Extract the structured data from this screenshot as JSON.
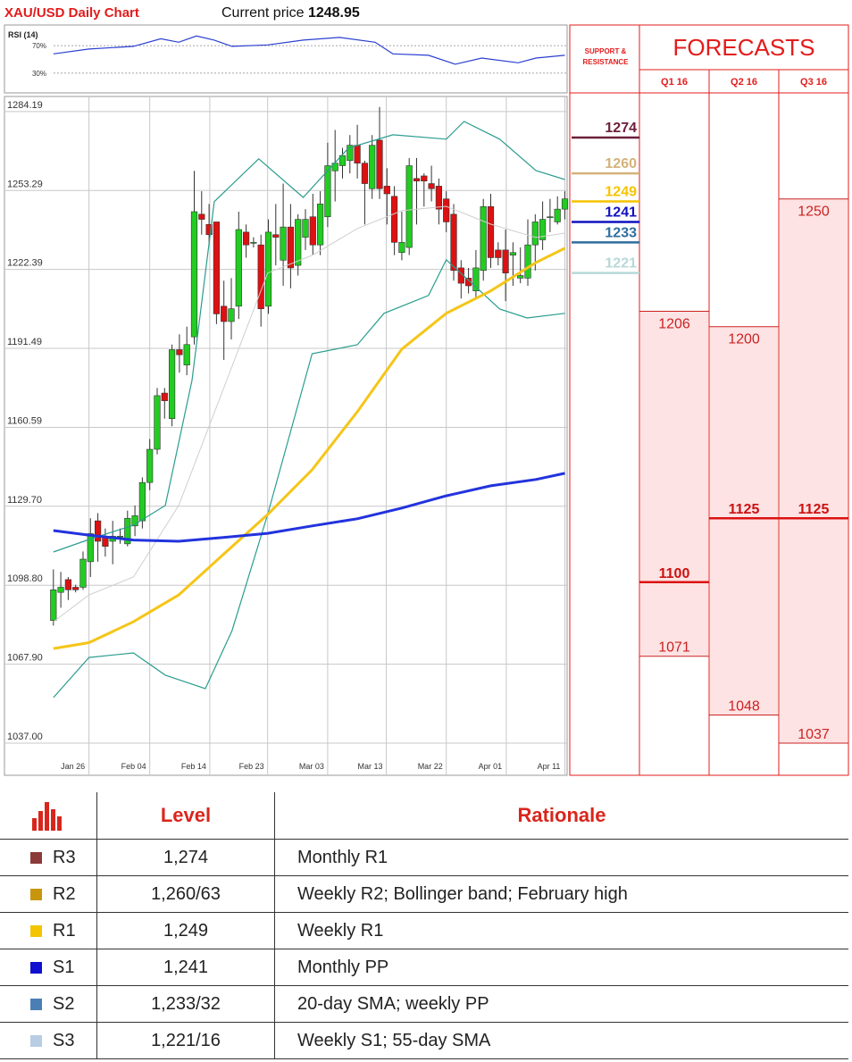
{
  "chart_data": [
    {
      "type": "candlestick",
      "title": "XAU/USD Daily Chart",
      "current_price_label": "Current price",
      "current_price": 1248.95,
      "up_color": "#22cc22",
      "down_color": "#dd1111",
      "x": [
        0,
        1,
        2,
        3,
        4,
        5,
        6,
        7,
        8,
        9,
        10,
        11,
        12,
        13,
        14,
        15,
        16,
        17,
        18,
        19,
        20,
        21,
        22,
        23,
        24,
        25,
        26,
        27,
        28,
        29,
        30,
        31,
        32,
        33,
        34,
        35,
        36,
        37,
        38,
        39,
        40,
        41,
        42,
        43,
        44,
        45,
        46,
        47,
        48,
        49,
        50,
        51,
        52,
        53,
        54,
        55,
        56,
        57,
        58,
        59,
        60,
        61,
        62,
        63,
        64,
        65,
        66,
        67,
        68,
        69
      ],
      "open": [
        1085,
        1096,
        1101,
        1098,
        1098,
        1108,
        1124,
        1118,
        1116,
        1118,
        1115,
        1122,
        1124,
        1139,
        1152,
        1174,
        1164,
        1191,
        1185,
        1196,
        1244,
        1240,
        1241,
        1208,
        1202,
        1208,
        1237,
        1233,
        1232,
        1208,
        1236,
        1226,
        1239,
        1224,
        1235,
        1243,
        1232,
        1243,
        1261,
        1263,
        1265,
        1271,
        1264,
        1254,
        1273,
        1255,
        1251,
        1229,
        1231,
        1258,
        1259,
        1256,
        1255,
        1250,
        1244,
        1223,
        1219,
        1214,
        1222,
        1247,
        1230,
        1230,
        1228,
        1219,
        1219,
        1232,
        1234,
        1243,
        1241,
        1246
      ],
      "high": [
        1105,
        1104,
        1102,
        1099,
        1112,
        1125,
        1127,
        1121,
        1124,
        1121,
        1128,
        1130,
        1141,
        1156,
        1176,
        1176,
        1193,
        1197,
        1200,
        1261,
        1253,
        1248,
        1241,
        1218,
        1219,
        1245,
        1240,
        1235,
        1236,
        1242,
        1248,
        1256,
        1248,
        1244,
        1246,
        1252,
        1253,
        1272,
        1277,
        1270,
        1275,
        1279,
        1265,
        1275,
        1286,
        1262,
        1255,
        1245,
        1266,
        1266,
        1260,
        1263,
        1258,
        1253,
        1248,
        1226,
        1223,
        1230,
        1250,
        1252,
        1233,
        1238,
        1233,
        1231,
        1242,
        1244,
        1249,
        1250,
        1251,
        1253
      ],
      "low": [
        1083,
        1090,
        1093,
        1096,
        1097,
        1102,
        1108,
        1110,
        1107,
        1115,
        1114,
        1118,
        1121,
        1136,
        1150,
        1164,
        1161,
        1182,
        1181,
        1193,
        1236,
        1232,
        1201,
        1187,
        1195,
        1203,
        1227,
        1231,
        1200,
        1205,
        1224,
        1216,
        1215,
        1220,
        1230,
        1228,
        1228,
        1239,
        1249,
        1258,
        1260,
        1258,
        1240,
        1250,
        1250,
        1240,
        1228,
        1226,
        1228,
        1240,
        1247,
        1249,
        1240,
        1237,
        1218,
        1211,
        1213,
        1211,
        1218,
        1223,
        1224,
        1210,
        1216,
        1217,
        1216,
        1222,
        1230,
        1237,
        1240,
        1242
      ],
      "close": [
        1097,
        1098,
        1097,
        1097,
        1109,
        1119,
        1116,
        1114,
        1118,
        1118,
        1125,
        1126,
        1139,
        1152,
        1173,
        1171,
        1191,
        1189,
        1193,
        1245,
        1242,
        1236,
        1205,
        1202,
        1207,
        1238,
        1232,
        1233,
        1207,
        1237,
        1235,
        1239,
        1223,
        1242,
        1242,
        1232,
        1248,
        1263,
        1264,
        1267,
        1271,
        1264,
        1256,
        1271,
        1254,
        1252,
        1233,
        1233,
        1263,
        1257,
        1257,
        1254,
        1246,
        1241,
        1222,
        1217,
        1216,
        1223,
        1247,
        1227,
        1227,
        1221,
        1229,
        1220,
        1232,
        1241,
        1242,
        1243,
        1246,
        1250
      ],
      "overlays": [
        {
          "color": "#cfcfcf",
          "width": 1,
          "x": [
            0,
            4.8,
            10.8,
            16.9,
            22.9,
            28.9,
            34.9,
            41,
            47,
            53,
            59,
            65.1,
            69
          ],
          "values": [
            1084.5,
            1095,
            1102,
            1130,
            1175.4,
            1221,
            1227.9,
            1238.4,
            1245.4,
            1247.1,
            1240.1,
            1234.9,
            1236.6
          ]
        },
        {
          "color": "#2a9d8f",
          "width": 1.2,
          "x": [
            0,
            4.8,
            10.8,
            15.1,
            18.7,
            21.7,
            27.7,
            33.7,
            39.8,
            45.8,
            53,
            55.4,
            60.2,
            65.1,
            69
          ],
          "values": [
            1111.8,
            1116.7,
            1122.3,
            1130,
            1179,
            1248.9,
            1265.7,
            1250.6,
            1269.9,
            1275.1,
            1273.4,
            1280.3,
            1273.4,
            1261.1,
            1257.6
          ]
        },
        {
          "color": "#2a9d8f",
          "width": 1.2,
          "x": [
            0,
            4.8,
            10.8,
            15.1,
            20.5,
            24.1,
            28.9,
            34.9,
            41,
            44.6,
            50.6,
            53,
            60.2,
            63.9,
            69
          ],
          "values": [
            1054.8,
            1070.5,
            1072.3,
            1063.6,
            1058.3,
            1081,
            1126.5,
            1189.4,
            1192.9,
            1205.2,
            1212.2,
            1226.2,
            1206.9,
            1203.4,
            1205.2
          ]
        },
        {
          "color": "#f5c518",
          "width": 3,
          "x": [
            0,
            4.8,
            10.8,
            16.9,
            22.9,
            28.9,
            34.9,
            41,
            47,
            53,
            59,
            65.1,
            69
          ],
          "values": [
            1074,
            1076.3,
            1084.5,
            1095,
            1110.8,
            1126.5,
            1144,
            1166.7,
            1191.2,
            1205.2,
            1214,
            1225.1,
            1230.7
          ]
        },
        {
          "color": "#2233dd",
          "width": 3,
          "x": [
            0,
            4.8,
            10.8,
            16.9,
            22.9,
            28.9,
            34.9,
            41,
            47,
            53,
            59,
            65.1,
            69
          ],
          "values": [
            1120.2,
            1118.4,
            1116.5,
            1116,
            1117.5,
            1119.1,
            1122,
            1124.8,
            1129,
            1133.8,
            1137.7,
            1140.2,
            1142.6
          ]
        }
      ],
      "xlim": [
        -6.6,
        69.3
      ],
      "ylim": [
        1024.4,
        1290.1
      ],
      "xticks": [
        {
          "value": 4.8,
          "label": "Jan 26"
        },
        {
          "value": 13,
          "label": "Feb 04"
        },
        {
          "value": 21.1,
          "label": "Feb 14"
        },
        {
          "value": 28.9,
          "label": "Feb 23"
        },
        {
          "value": 37,
          "label": "Mar 03"
        },
        {
          "value": 44.9,
          "label": "Mar 13"
        },
        {
          "value": 53,
          "label": "Mar 22"
        },
        {
          "value": 61.1,
          "label": "Apr 01"
        },
        {
          "value": 69,
          "label": "Apr 11"
        }
      ],
      "yticks": [
        1284.19,
        1253.29,
        1222.39,
        1191.49,
        1160.59,
        {
          "value": 1129.7,
          "label": "1129.70"
        },
        {
          "value": 1098.8,
          "label": "1098.80"
        },
        {
          "value": 1067.9,
          "label": "1067.90"
        },
        {
          "value": 1037,
          "label": "1037.00"
        }
      ],
      "grid": true
    },
    {
      "type": "line",
      "title": "RSI (14)",
      "color": "#2a3fd0",
      "x": [
        0,
        4.8,
        10.8,
        14.5,
        16.9,
        19.3,
        21.7,
        24.1,
        28.9,
        33.7,
        38.6,
        43.4,
        45.8,
        50.6,
        54.2,
        57.8,
        62.7,
        65.1,
        69
      ],
      "values": [
        58,
        65,
        69,
        80,
        75,
        84,
        78,
        69,
        71,
        78,
        82,
        75,
        58,
        56,
        43,
        52,
        45,
        52,
        56
      ],
      "xlim": [
        -6.6,
        69.3
      ],
      "ylim": [
        0,
        100
      ],
      "yticks": [
        {
          "value": 70,
          "label": "70%"
        },
        {
          "value": 30,
          "label": "30%"
        }
      ],
      "grid": true
    }
  ],
  "support_resistance": {
    "title": "SUPPORT & RESISTANCE",
    "levels": [
      {
        "value": 1274,
        "color": "#6b1f3a"
      },
      {
        "value": 1260,
        "color": "#d4b27a"
      },
      {
        "value": 1249,
        "color": "#f5c400"
      },
      {
        "value": 1241,
        "color": "#1010c0"
      },
      {
        "value": 1233,
        "color": "#2e6e9e"
      },
      {
        "value": 1221,
        "color": "#b8d8d8"
      }
    ]
  },
  "forecasts": {
    "title": "FORECASTS",
    "columns": [
      {
        "name": "Q1 16",
        "high": 1206,
        "mid": 1100,
        "low": 1071
      },
      {
        "name": "Q2 16",
        "high": 1200,
        "mid": 1125,
        "low": 1048
      },
      {
        "name": "Q3 16",
        "high": 1250,
        "mid": 1125,
        "low": 1037
      }
    ]
  },
  "table": {
    "header": [
      "Level",
      "Rationale"
    ],
    "rows": [
      {
        "color": "#8b3a3a",
        "label": "R3",
        "level": "1,274",
        "rationale": "Monthly R1"
      },
      {
        "color": "#c8960c",
        "label": "R2",
        "level": "1,260/63",
        "rationale": "Weekly R2; Bollinger band; February high"
      },
      {
        "color": "#f2c500",
        "label": "R1",
        "level": "1,249",
        "rationale": "Weekly R1"
      },
      {
        "color": "#1010d0",
        "label": "S1",
        "level": "1,241",
        "rationale": "Monthly PP"
      },
      {
        "color": "#4a7fb5",
        "label": "S2",
        "level": "1,233/32",
        "rationale": "20-day SMA; weekly PP"
      },
      {
        "color": "#b8cce4",
        "label": "S3",
        "level": "1,221/16",
        "rationale": "Weekly S1; 55-day SMA"
      }
    ]
  }
}
